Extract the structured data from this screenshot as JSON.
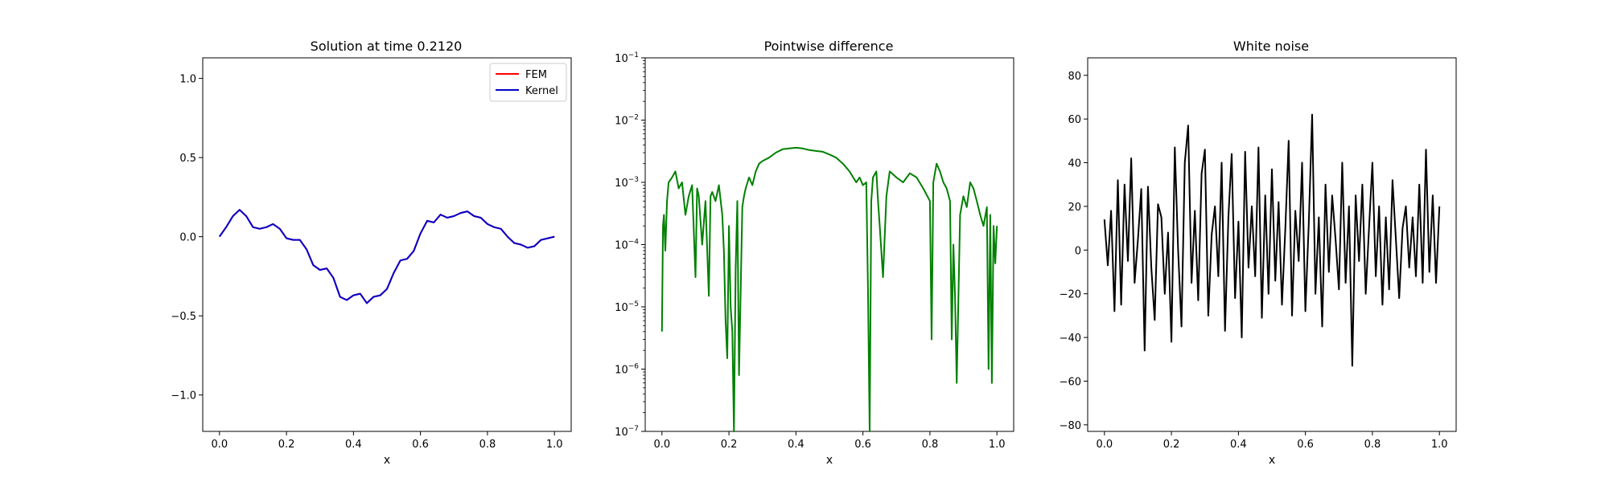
{
  "chart_data": [
    {
      "type": "line",
      "title": "Solution at time 0.2120",
      "xlabel": "x",
      "ylabel": "",
      "xlim": [
        -0.05,
        1.05
      ],
      "ylim": [
        -1.23,
        1.13
      ],
      "xticks": [
        0.0,
        0.2,
        0.4,
        0.6,
        0.8,
        1.0
      ],
      "xtick_labels": [
        "0.0",
        "0.2",
        "0.4",
        "0.6",
        "0.8",
        "1.0"
      ],
      "yticks": [
        -1.0,
        -0.5,
        0.0,
        0.5,
        1.0
      ],
      "ytick_labels": [
        "−1.0",
        "−0.5",
        "0.0",
        "0.5",
        "1.0"
      ],
      "legend_position": "top-right",
      "series": [
        {
          "name": "FEM",
          "color": "#ff0000",
          "x": [
            0.0,
            0.02,
            0.04,
            0.06,
            0.08,
            0.1,
            0.12,
            0.14,
            0.16,
            0.18,
            0.2,
            0.22,
            0.24,
            0.26,
            0.28,
            0.3,
            0.32,
            0.34,
            0.36,
            0.38,
            0.4,
            0.42,
            0.44,
            0.46,
            0.48,
            0.5,
            0.52,
            0.54,
            0.56,
            0.58,
            0.6,
            0.62,
            0.64,
            0.66,
            0.68,
            0.7,
            0.72,
            0.74,
            0.76,
            0.78,
            0.8,
            0.82,
            0.84,
            0.86,
            0.88,
            0.9,
            0.92,
            0.94,
            0.96,
            0.98,
            1.0
          ],
          "y": [
            0.0,
            0.06,
            0.13,
            0.17,
            0.13,
            0.06,
            0.05,
            0.06,
            0.08,
            0.05,
            -0.01,
            -0.02,
            -0.02,
            -0.08,
            -0.18,
            -0.21,
            -0.2,
            -0.26,
            -0.38,
            -0.4,
            -0.37,
            -0.36,
            -0.42,
            -0.38,
            -0.37,
            -0.33,
            -0.23,
            -0.15,
            -0.14,
            -0.09,
            0.02,
            0.1,
            0.09,
            0.14,
            0.12,
            0.13,
            0.15,
            0.16,
            0.13,
            0.12,
            0.08,
            0.06,
            0.05,
            0.0,
            -0.04,
            -0.05,
            -0.07,
            -0.06,
            -0.02,
            -0.01,
            0.0
          ]
        },
        {
          "name": "Kernel",
          "color": "#0000cc",
          "x": [
            0.0,
            0.02,
            0.04,
            0.06,
            0.08,
            0.1,
            0.12,
            0.14,
            0.16,
            0.18,
            0.2,
            0.22,
            0.24,
            0.26,
            0.28,
            0.3,
            0.32,
            0.34,
            0.36,
            0.38,
            0.4,
            0.42,
            0.44,
            0.46,
            0.48,
            0.5,
            0.52,
            0.54,
            0.56,
            0.58,
            0.6,
            0.62,
            0.64,
            0.66,
            0.68,
            0.7,
            0.72,
            0.74,
            0.76,
            0.78,
            0.8,
            0.82,
            0.84,
            0.86,
            0.88,
            0.9,
            0.92,
            0.94,
            0.96,
            0.98,
            1.0
          ],
          "y": [
            0.0,
            0.06,
            0.13,
            0.17,
            0.13,
            0.06,
            0.05,
            0.06,
            0.08,
            0.05,
            -0.01,
            -0.02,
            -0.02,
            -0.08,
            -0.18,
            -0.21,
            -0.2,
            -0.26,
            -0.38,
            -0.4,
            -0.37,
            -0.36,
            -0.42,
            -0.38,
            -0.37,
            -0.33,
            -0.23,
            -0.15,
            -0.14,
            -0.09,
            0.02,
            0.1,
            0.09,
            0.14,
            0.12,
            0.13,
            0.15,
            0.16,
            0.13,
            0.12,
            0.08,
            0.06,
            0.05,
            0.0,
            -0.04,
            -0.05,
            -0.07,
            -0.06,
            -0.02,
            -0.01,
            0.0
          ]
        }
      ]
    },
    {
      "type": "line",
      "title": "Pointwise difference",
      "xlabel": "x",
      "ylabel": "",
      "yscale": "log",
      "xlim": [
        -0.05,
        1.05
      ],
      "ylim": [
        1e-07,
        0.1
      ],
      "xticks": [
        0.0,
        0.2,
        0.4,
        0.6,
        0.8,
        1.0
      ],
      "xtick_labels": [
        "0.0",
        "0.2",
        "0.4",
        "0.6",
        "0.8",
        "1.0"
      ],
      "yticks": [
        1e-07,
        1e-06,
        1e-05,
        0.0001,
        0.001,
        0.01,
        0.1
      ],
      "ytick_bases": [
        "10",
        "10",
        "10",
        "10",
        "10",
        "10",
        "10"
      ],
      "ytick_exponents": [
        "−7",
        "−6",
        "−5",
        "−4",
        "−3",
        "−2",
        "−1"
      ],
      "series": [
        {
          "color": "#008000",
          "x": [
            0.0,
            0.003,
            0.006,
            0.01,
            0.015,
            0.02,
            0.03,
            0.04,
            0.05,
            0.06,
            0.07,
            0.08,
            0.09,
            0.1,
            0.105,
            0.11,
            0.12,
            0.13,
            0.14,
            0.14,
            0.145,
            0.15,
            0.16,
            0.17,
            0.18,
            0.185,
            0.19,
            0.195,
            0.2,
            0.205,
            0.21,
            0.215,
            0.22,
            0.225,
            0.23,
            0.24,
            0.245,
            0.25,
            0.26,
            0.27,
            0.28,
            0.29,
            0.3,
            0.32,
            0.34,
            0.36,
            0.38,
            0.4,
            0.42,
            0.44,
            0.46,
            0.48,
            0.5,
            0.52,
            0.54,
            0.56,
            0.58,
            0.59,
            0.6,
            0.61,
            0.615,
            0.62,
            0.625,
            0.63,
            0.64,
            0.645,
            0.65,
            0.66,
            0.67,
            0.68,
            0.7,
            0.72,
            0.74,
            0.76,
            0.78,
            0.8,
            0.805,
            0.81,
            0.82,
            0.83,
            0.84,
            0.85,
            0.86,
            0.865,
            0.87,
            0.875,
            0.88,
            0.89,
            0.9,
            0.91,
            0.92,
            0.93,
            0.94,
            0.95,
            0.96,
            0.97,
            0.975,
            0.98,
            0.985,
            0.99,
            0.995,
            1.0
          ],
          "y": [
            4e-06,
            0.0002,
            0.0003,
            8e-05,
            0.0005,
            0.001,
            0.0012,
            0.0015,
            0.0008,
            0.001,
            0.0003,
            0.0006,
            0.0009,
            3e-05,
            0.0008,
            0.0006,
            0.0001,
            0.0005,
            1.5e-05,
            1.5e-05,
            0.0006,
            0.0007,
            0.0005,
            0.0009,
            0.0003,
            8e-05,
            6e-06,
            1.5e-06,
            0.0002,
            1e-05,
            4e-06,
            1e-07,
            4e-05,
            0.0005,
            8e-07,
            0.0004,
            0.0006,
            0.0008,
            0.0012,
            0.0009,
            0.0015,
            0.002,
            0.0022,
            0.0025,
            0.003,
            0.0034,
            0.0035,
            0.0036,
            0.0035,
            0.0033,
            0.0032,
            0.0031,
            0.0028,
            0.0025,
            0.002,
            0.0015,
            0.001,
            0.0012,
            0.0009,
            0.001,
            2e-05,
            1e-07,
            0.0005,
            0.0012,
            0.0015,
            0.0005,
            0.0002,
            3e-05,
            0.0006,
            0.0015,
            0.0012,
            0.001,
            0.0014,
            0.0012,
            0.0008,
            0.0005,
            3e-06,
            0.001,
            0.002,
            0.0015,
            0.001,
            0.0008,
            0.0005,
            3e-06,
            0.0001,
            1.5e-05,
            6e-07,
            0.0003,
            0.0006,
            0.0004,
            0.001,
            0.0008,
            0.0005,
            0.0003,
            0.0002,
            0.0004,
            1e-06,
            0.0003,
            6e-07,
            0.0002,
            5e-05,
            0.0002
          ]
        }
      ]
    },
    {
      "type": "line",
      "title": "White noise",
      "xlabel": "x",
      "ylabel": "",
      "xlim": [
        -0.05,
        1.05
      ],
      "ylim": [
        -83,
        88
      ],
      "xticks": [
        0.0,
        0.2,
        0.4,
        0.6,
        0.8,
        1.0
      ],
      "xtick_labels": [
        "0.0",
        "0.2",
        "0.4",
        "0.6",
        "0.8",
        "1.0"
      ],
      "yticks": [
        -80,
        -60,
        -40,
        -20,
        0,
        20,
        40,
        60,
        80
      ],
      "ytick_labels": [
        "−80",
        "−60",
        "−40",
        "−20",
        "0",
        "20",
        "40",
        "60",
        "80"
      ],
      "series": [
        {
          "color": "#000000",
          "x": [
            0.0,
            0.01,
            0.02,
            0.03,
            0.04,
            0.05,
            0.06,
            0.07,
            0.08,
            0.09,
            0.1,
            0.11,
            0.12,
            0.13,
            0.14,
            0.15,
            0.16,
            0.17,
            0.18,
            0.19,
            0.2,
            0.21,
            0.22,
            0.23,
            0.24,
            0.25,
            0.26,
            0.27,
            0.28,
            0.29,
            0.3,
            0.31,
            0.32,
            0.33,
            0.34,
            0.35,
            0.36,
            0.37,
            0.38,
            0.39,
            0.4,
            0.41,
            0.42,
            0.43,
            0.44,
            0.45,
            0.46,
            0.47,
            0.48,
            0.49,
            0.5,
            0.51,
            0.52,
            0.53,
            0.54,
            0.55,
            0.56,
            0.57,
            0.58,
            0.59,
            0.6,
            0.61,
            0.62,
            0.63,
            0.64,
            0.65,
            0.66,
            0.67,
            0.68,
            0.69,
            0.7,
            0.71,
            0.72,
            0.73,
            0.74,
            0.75,
            0.76,
            0.77,
            0.78,
            0.79,
            0.8,
            0.81,
            0.82,
            0.83,
            0.84,
            0.85,
            0.86,
            0.87,
            0.88,
            0.89,
            0.9,
            0.91,
            0.92,
            0.93,
            0.94,
            0.95,
            0.96,
            0.97,
            0.98,
            0.99,
            1.0
          ],
          "y": [
            14,
            -7,
            18,
            -28,
            32,
            -25,
            30,
            -5,
            42,
            -15,
            5,
            28,
            -46,
            29,
            -8,
            -32,
            21,
            15,
            -20,
            8,
            -42,
            47,
            0,
            -35,
            40,
            57,
            -15,
            18,
            -23,
            35,
            46,
            -30,
            7,
            20,
            -12,
            40,
            -37,
            15,
            44,
            -22,
            13,
            -40,
            45,
            -8,
            20,
            -12,
            47,
            -31,
            25,
            -20,
            37,
            -14,
            22,
            -25,
            10,
            50,
            -30,
            18,
            -5,
            40,
            -28,
            12,
            62,
            -20,
            15,
            -35,
            30,
            -10,
            25,
            5,
            -18,
            40,
            -15,
            20,
            -53,
            25,
            -5,
            30,
            -20,
            10,
            40,
            -12,
            20,
            -25,
            15,
            -18,
            32,
            5,
            -22,
            10,
            20,
            -8,
            15,
            -12,
            30,
            -15,
            46,
            -10,
            25,
            -15,
            20
          ]
        }
      ]
    }
  ]
}
